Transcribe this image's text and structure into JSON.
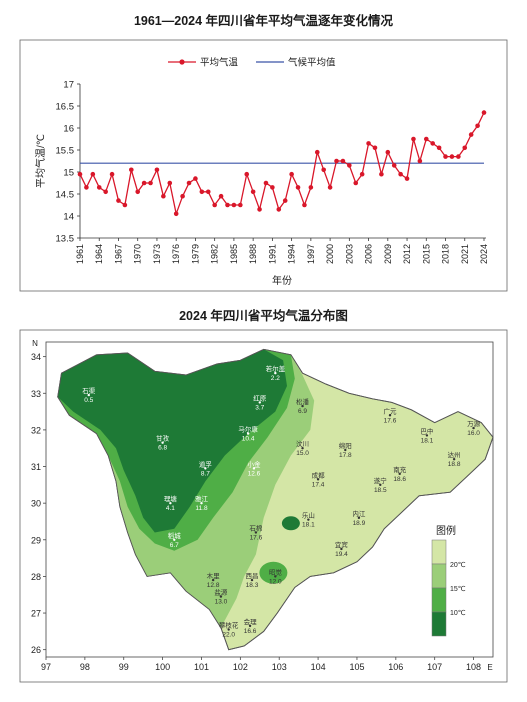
{
  "chart_data": [
    {
      "type": "line",
      "title": "1961—2024 年四川省年平均气温逐年变化情况",
      "xlabel": "年份",
      "ylabel": "平均气温/℃",
      "ylim": [
        13.5,
        17
      ],
      "yticks": [
        "13.5",
        "14",
        "14.5",
        "15",
        "15.5",
        "16",
        "16.5",
        "17"
      ],
      "xticks": [
        "1961",
        "1964",
        "1967",
        "1970",
        "1973",
        "1976",
        "1979",
        "1982",
        "1985",
        "1988",
        "1991",
        "1994",
        "1997",
        "2000",
        "2003",
        "2006",
        "2009",
        "2012",
        "2015",
        "2018",
        "2021",
        "2024"
      ],
      "legend_position": "top-center",
      "x_start": 1961,
      "series": [
        {
          "name": "平均气温",
          "color": "#d9172a",
          "values": [
            14.95,
            14.65,
            14.95,
            14.65,
            14.55,
            14.95,
            14.35,
            14.25,
            15.05,
            14.55,
            14.75,
            14.75,
            15.05,
            14.45,
            14.75,
            14.05,
            14.45,
            14.75,
            14.85,
            14.55,
            14.55,
            14.25,
            14.45,
            14.25,
            14.25,
            14.25,
            14.95,
            14.55,
            14.15,
            14.75,
            14.65,
            14.15,
            14.35,
            14.95,
            14.65,
            14.25,
            14.65,
            15.45,
            15.05,
            14.65,
            15.25,
            15.25,
            15.15,
            14.75,
            14.95,
            15.65,
            15.55,
            14.95,
            15.45,
            15.15,
            14.95,
            14.85,
            15.75,
            15.25,
            15.75,
            15.65,
            15.55,
            15.35,
            15.35,
            15.35,
            15.55,
            15.85,
            16.05,
            16.35
          ]
        },
        {
          "name": "气候平均值",
          "color": "#3b55a8",
          "values": [
            15.2
          ]
        }
      ]
    },
    {
      "type": "heatmap",
      "title": "2024 年四川省平均气温分布图",
      "x_axis_letter": "E",
      "y_axis_letter": "N",
      "xticks": [
        "97",
        "98",
        "99",
        "100",
        "101",
        "102",
        "103",
        "104",
        "105",
        "106",
        "107",
        "108"
      ],
      "yticks": [
        "26",
        "27",
        "28",
        "29",
        "30",
        "31",
        "32",
        "33",
        "34"
      ],
      "xlim": [
        97,
        108.5
      ],
      "ylim": [
        25.8,
        34.4
      ],
      "legend": {
        "title": "图例",
        "labels": [
          "20℃",
          "15℃",
          "10℃"
        ],
        "colors": [
          "#d4e6a6",
          "#9bce79",
          "#4fae46",
          "#1e7a36"
        ]
      },
      "stations": [
        {
          "name": "若尔盖",
          "value": "2.2",
          "lon": 102.9,
          "lat": 33.55
        },
        {
          "name": "石渠",
          "value": "0.5",
          "lon": 98.1,
          "lat": 32.95
        },
        {
          "name": "红原",
          "value": "3.7",
          "lon": 102.5,
          "lat": 32.75
        },
        {
          "name": "松潘",
          "value": "6.9",
          "lon": 103.6,
          "lat": 32.65
        },
        {
          "name": "马尔康",
          "value": "10.4",
          "lon": 102.2,
          "lat": 31.9
        },
        {
          "name": "甘孜",
          "value": "6.8",
          "lon": 100.0,
          "lat": 31.65
        },
        {
          "name": "道孚",
          "value": "8.7",
          "lon": 101.1,
          "lat": 30.95
        },
        {
          "name": "小金",
          "value": "12.6",
          "lon": 102.35,
          "lat": 30.95
        },
        {
          "name": "雅江",
          "value": "11.8",
          "lon": 101.0,
          "lat": 30.0
        },
        {
          "name": "理塘",
          "value": "4.1",
          "lon": 100.2,
          "lat": 30.0
        },
        {
          "name": "稻城",
          "value": "6.7",
          "lon": 100.3,
          "lat": 29.0
        },
        {
          "name": "木里",
          "value": "12.8",
          "lon": 101.3,
          "lat": 27.9
        },
        {
          "name": "西昌",
          "value": "18.3",
          "lon": 102.3,
          "lat": 27.9
        },
        {
          "name": "昭觉",
          "value": "12.0",
          "lon": 102.9,
          "lat": 28.0
        },
        {
          "name": "会理",
          "value": "16.6",
          "lon": 102.25,
          "lat": 26.65
        },
        {
          "name": "盐源",
          "value": "13.0",
          "lon": 101.5,
          "lat": 27.45
        },
        {
          "name": "攀枝花",
          "value": "22.0",
          "lon": 101.7,
          "lat": 26.55
        },
        {
          "name": "石棉",
          "value": "17.6",
          "lon": 102.4,
          "lat": 29.2
        },
        {
          "name": "汶川",
          "value": "15.0",
          "lon": 103.6,
          "lat": 31.5
        },
        {
          "name": "绵阳",
          "value": "17.8",
          "lon": 104.7,
          "lat": 31.45
        },
        {
          "name": "成都",
          "value": "17.4",
          "lon": 104.0,
          "lat": 30.65
        },
        {
          "name": "乐山",
          "value": "18.1",
          "lon": 103.75,
          "lat": 29.55
        },
        {
          "name": "宜宾",
          "value": "19.4",
          "lon": 104.6,
          "lat": 28.75
        },
        {
          "name": "内江",
          "value": "18.9",
          "lon": 105.05,
          "lat": 29.6
        },
        {
          "name": "遂宁",
          "value": "18.5",
          "lon": 105.6,
          "lat": 30.5
        },
        {
          "name": "南充",
          "value": "18.6",
          "lon": 106.1,
          "lat": 30.8
        },
        {
          "name": "广元",
          "value": "17.6",
          "lon": 105.85,
          "lat": 32.4
        },
        {
          "name": "巴中",
          "value": "18.1",
          "lon": 106.8,
          "lat": 31.85
        },
        {
          "name": "达州",
          "value": "18.8",
          "lon": 107.5,
          "lat": 31.2
        },
        {
          "name": "万源",
          "value": "16.0",
          "lon": 108.0,
          "lat": 32.05
        }
      ]
    }
  ]
}
